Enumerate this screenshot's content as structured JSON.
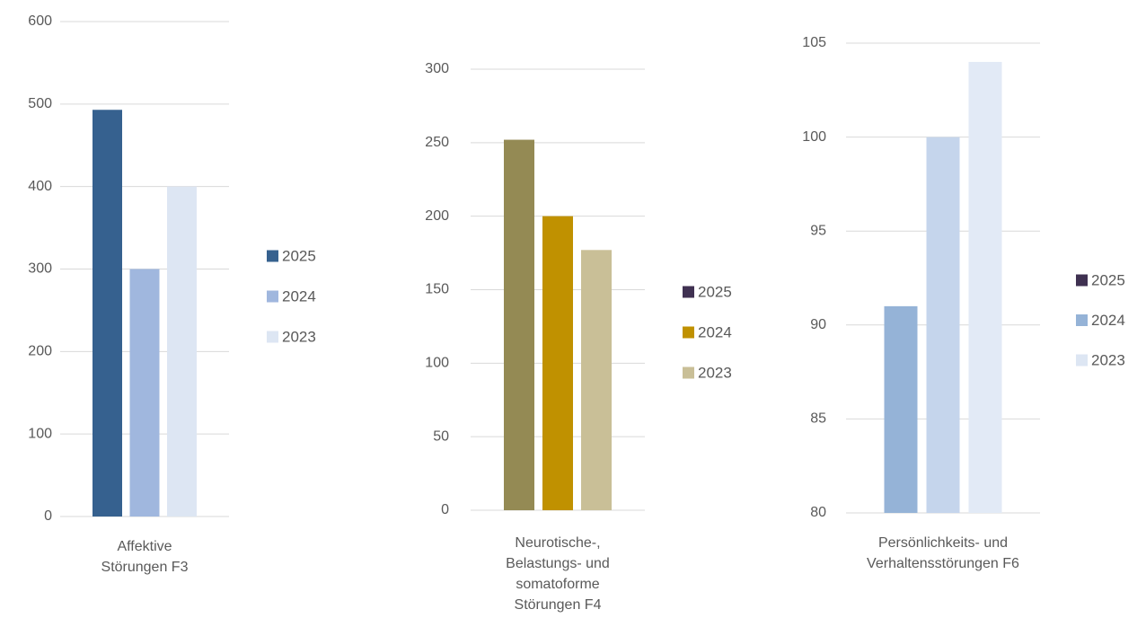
{
  "chart_data": [
    {
      "type": "bar",
      "categories": [
        "Affektive Störungen F3"
      ],
      "series": [
        {
          "name": "2025",
          "color": "#36618f",
          "values": [
            493
          ]
        },
        {
          "name": "2024",
          "color": "#a0b7de",
          "values": [
            300
          ]
        },
        {
          "name": "2023",
          "color": "#dde6f3",
          "values": [
            400
          ]
        }
      ],
      "ylim": [
        0,
        600
      ],
      "yticks": [
        0,
        100,
        200,
        300,
        400,
        500,
        600
      ],
      "grid": true,
      "legend": "right"
    },
    {
      "type": "bar",
      "categories": [
        "Neurotische-, Belastungs- und somatoforme Störungen F4"
      ],
      "series": [
        {
          "name": "2025",
          "color": "#948a54",
          "legend_color": "#403152",
          "values": [
            252
          ]
        },
        {
          "name": "2024",
          "color": "#c09100",
          "values": [
            200
          ]
        },
        {
          "name": "2023",
          "color": "#c9bf97",
          "values": [
            177
          ]
        }
      ],
      "ylim": [
        0,
        300
      ],
      "yticks": [
        0,
        50,
        100,
        150,
        200,
        250,
        300
      ],
      "grid": true,
      "legend": "right"
    },
    {
      "type": "bar",
      "categories": [
        "Persönlichkeits- und Verhaltensstörungen F6"
      ],
      "series": [
        {
          "name": "2025",
          "color": "#95b3d7",
          "legend_color": "#3f3151",
          "values": [
            91
          ]
        },
        {
          "name": "2024",
          "color": "#c5d5ec",
          "legend_color": "#95b3d7",
          "values": [
            100
          ]
        },
        {
          "name": "2023",
          "color": "#e2eaf6",
          "legend_color": "#dde6f3",
          "values": [
            104
          ]
        }
      ],
      "ylim": [
        80,
        105
      ],
      "yticks": [
        80,
        85,
        90,
        95,
        100,
        105
      ],
      "grid": true,
      "legend": "right"
    }
  ]
}
